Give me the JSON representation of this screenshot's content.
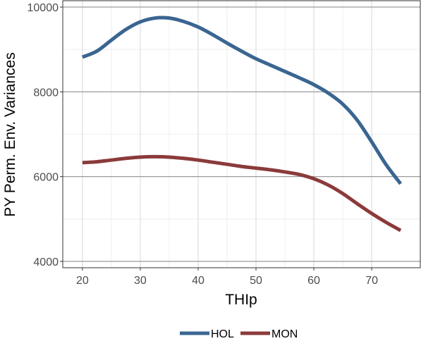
{
  "chart_data": {
    "type": "line",
    "xlabel": "THIp",
    "ylabel": "PY Perm. Env. Variances",
    "xlim": [
      16.6,
      78.4
    ],
    "ylim": [
      3850,
      10150
    ],
    "xticks": [
      20,
      30,
      40,
      50,
      60,
      70
    ],
    "yticks": [
      4000,
      6000,
      8000,
      10000
    ],
    "grid": true,
    "legend_position": "bottom",
    "series": [
      {
        "name": "HOL",
        "color": "#3a6591",
        "x": [
          20,
          22.5,
          25,
          27.5,
          30,
          32.5,
          35,
          37.5,
          40,
          42.5,
          45,
          47.5,
          50,
          52.5,
          55,
          57.5,
          60,
          62.5,
          65,
          67.5,
          70,
          72.5,
          75
        ],
        "y": [
          8820,
          8960,
          9220,
          9470,
          9650,
          9740,
          9740,
          9660,
          9530,
          9350,
          9150,
          8960,
          8780,
          8630,
          8480,
          8330,
          8170,
          7970,
          7710,
          7330,
          6820,
          6280,
          5830
        ]
      },
      {
        "name": "MON",
        "color": "#8b3a3a",
        "x": [
          20,
          22.5,
          25,
          27.5,
          30,
          32.5,
          35,
          37.5,
          40,
          42.5,
          45,
          47.5,
          50,
          52.5,
          55,
          57.5,
          60,
          62.5,
          65,
          67.5,
          70,
          72.5,
          75
        ],
        "y": [
          6330,
          6350,
          6390,
          6430,
          6460,
          6470,
          6460,
          6430,
          6390,
          6340,
          6290,
          6240,
          6200,
          6160,
          6110,
          6050,
          5950,
          5800,
          5600,
          5360,
          5130,
          4920,
          4730
        ]
      }
    ]
  }
}
